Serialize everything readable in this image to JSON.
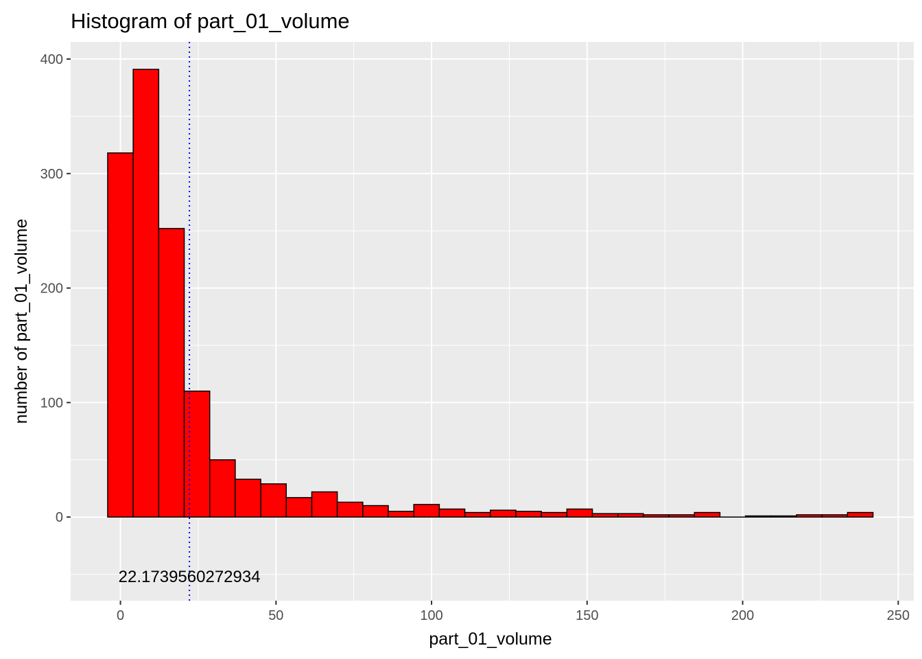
{
  "chart_data": {
    "type": "bar",
    "title": "Histogram of  part_01_volume",
    "xlabel": "part_01_volume",
    "ylabel": "number of  part_01_volume",
    "xlim": [
      -16,
      255
    ],
    "ylim": [
      -73,
      415
    ],
    "x_ticks": [
      0,
      50,
      100,
      150,
      200,
      250
    ],
    "y_ticks": [
      0,
      100,
      200,
      300,
      400
    ],
    "bin_width": 8.2,
    "bar_color": "#ff0000",
    "bar_outline": "#000000",
    "bins": [
      {
        "start": -4.1,
        "end": 4.1,
        "count": 318
      },
      {
        "start": 4.1,
        "end": 12.3,
        "count": 391
      },
      {
        "start": 12.3,
        "end": 20.5,
        "count": 252
      },
      {
        "start": 20.5,
        "end": 28.7,
        "count": 110
      },
      {
        "start": 28.7,
        "end": 36.9,
        "count": 50
      },
      {
        "start": 36.9,
        "end": 45.1,
        "count": 33
      },
      {
        "start": 45.1,
        "end": 53.3,
        "count": 29
      },
      {
        "start": 53.3,
        "end": 61.5,
        "count": 17
      },
      {
        "start": 61.5,
        "end": 69.7,
        "count": 22
      },
      {
        "start": 69.7,
        "end": 77.9,
        "count": 13
      },
      {
        "start": 77.9,
        "end": 86.1,
        "count": 10
      },
      {
        "start": 86.1,
        "end": 94.3,
        "count": 5
      },
      {
        "start": 94.3,
        "end": 102.5,
        "count": 11
      },
      {
        "start": 102.5,
        "end": 110.7,
        "count": 7
      },
      {
        "start": 110.7,
        "end": 118.9,
        "count": 4
      },
      {
        "start": 118.9,
        "end": 127.1,
        "count": 6
      },
      {
        "start": 127.1,
        "end": 135.3,
        "count": 5
      },
      {
        "start": 135.3,
        "end": 143.5,
        "count": 4
      },
      {
        "start": 143.5,
        "end": 151.7,
        "count": 7
      },
      {
        "start": 151.7,
        "end": 159.9,
        "count": 3
      },
      {
        "start": 159.9,
        "end": 168.1,
        "count": 3
      },
      {
        "start": 168.1,
        "end": 176.3,
        "count": 2
      },
      {
        "start": 176.3,
        "end": 184.5,
        "count": 2
      },
      {
        "start": 184.5,
        "end": 192.7,
        "count": 4
      },
      {
        "start": 192.7,
        "end": 200.9,
        "count": 0
      },
      {
        "start": 200.9,
        "end": 209.1,
        "count": 1
      },
      {
        "start": 209.1,
        "end": 217.3,
        "count": 1
      },
      {
        "start": 217.3,
        "end": 225.5,
        "count": 2
      },
      {
        "start": 225.5,
        "end": 233.7,
        "count": 2
      },
      {
        "start": 233.7,
        "end": 241.9,
        "count": 4
      }
    ],
    "reference_line": {
      "x": 22.1739560272934,
      "color": "#0000ff",
      "style": "dotted"
    },
    "annotation": {
      "text": "22.1739560272934",
      "x": 22.1739560272934,
      "y": -52
    },
    "grid": true,
    "panel_background": "#ebebeb"
  }
}
